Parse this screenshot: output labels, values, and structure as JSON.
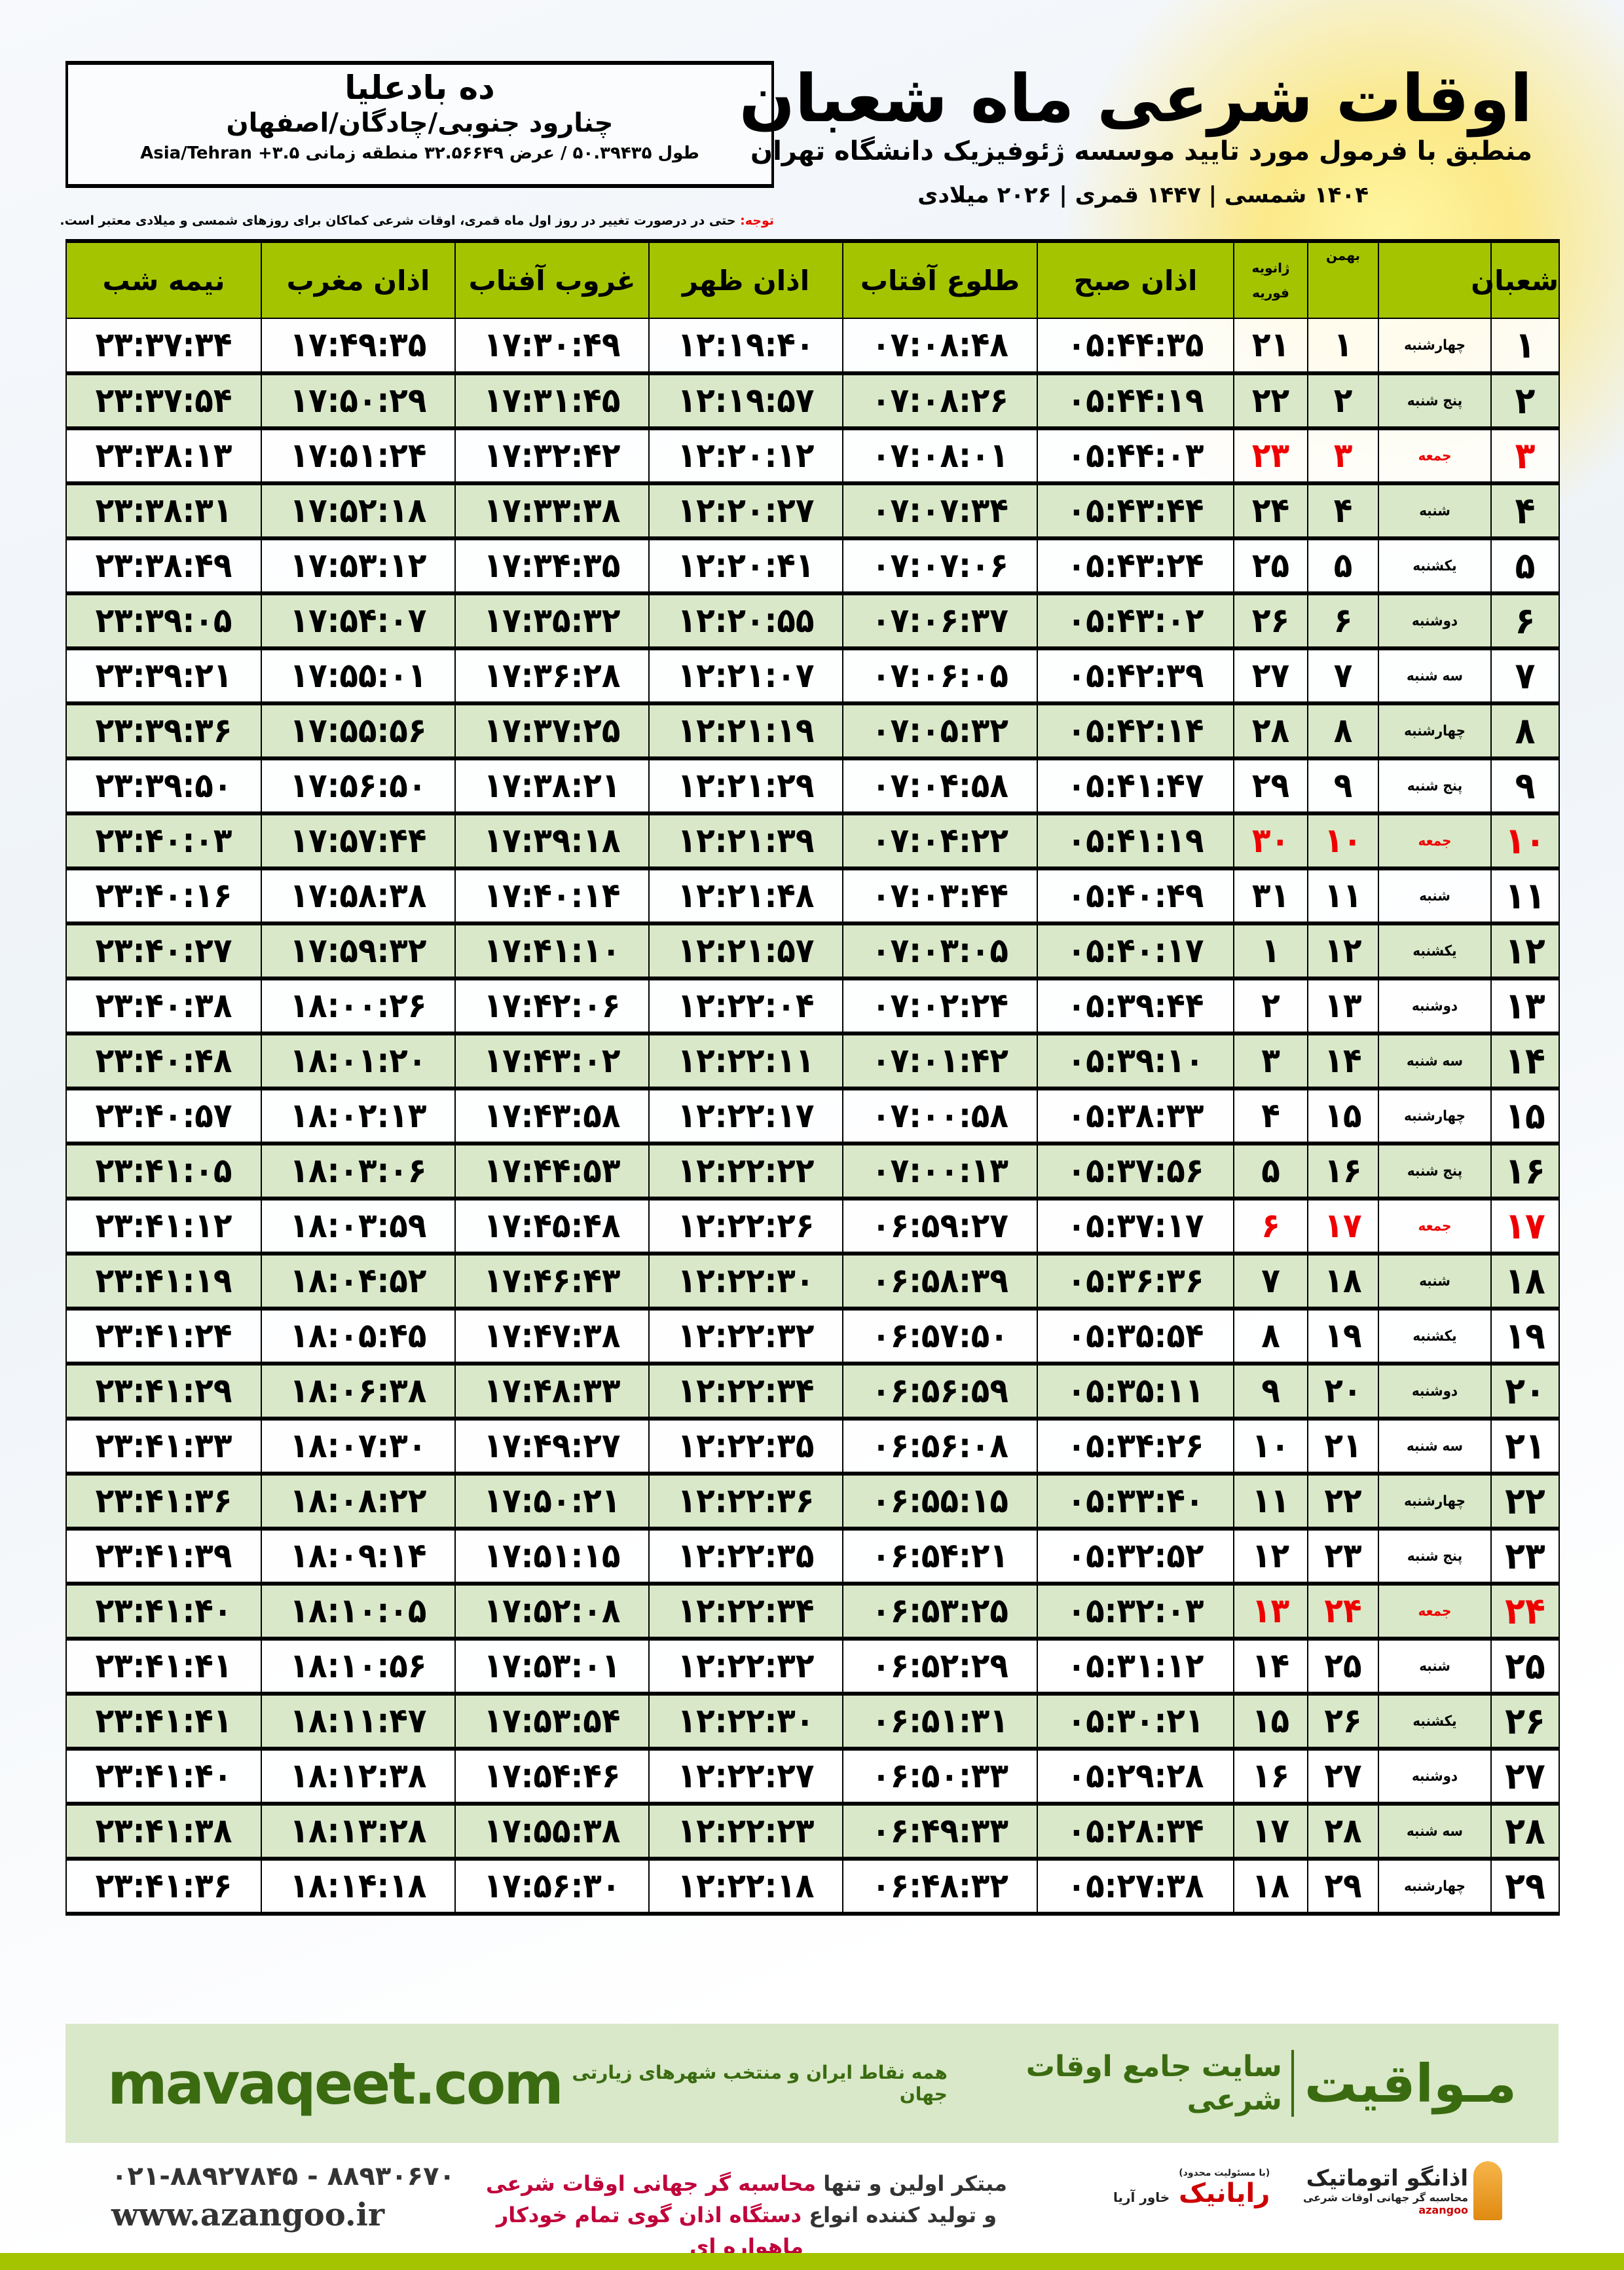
{
  "title": "اوقات شرعی ماه شعبان",
  "subtitle": "منطبق با فرمول مورد تایید موسسه ژئوفیزیک دانشگاه تهران",
  "dates": "۱۴۰۴ شمسی | ۱۴۴۷ قمری | ۲۰۲۶ میلادی",
  "location": {
    "name": "ده بادعلیا",
    "path": "چنارود جنوبی/چادگان/اصفهان",
    "coords": "طول ۵۰.۳۹۴۳۵ / عرض ۳۲.۵۶۶۴۹ منطقه زمانی Asia/Tehran +۳.۵"
  },
  "note": {
    "label": "توجه:",
    "text": " حتی در درصورت تغییر در روز اول ماه قمری، اوقات شرعی کماکان برای روزهای شمسی و میلادی معتبر است."
  },
  "headers": {
    "day": "شعبان",
    "bahman": "بهمن",
    "greg_top": "ژانویه",
    "greg_bottom": "فوریه",
    "fajr": "اذان صبح",
    "sunrise": "طلوع آفتاب",
    "dhuhr": "اذان ظهر",
    "sunset": "غروب آفتاب",
    "maghrib": "اذان مغرب",
    "midnight": "نیمه شب"
  },
  "colors": {
    "header": "#a5c400",
    "alt_row": "#d9e8c8",
    "friday": "#e00000"
  },
  "rows": [
    [
      "۱",
      "چهارشنبه",
      "۱",
      "۲۱",
      "۰۵:۴۴:۳۵",
      "۰۷:۰۸:۴۸",
      "۱۲:۱۹:۴۰",
      "۱۷:۳۰:۴۹",
      "۱۷:۴۹:۳۵",
      "۲۳:۳۷:۳۴"
    ],
    [
      "۲",
      "پنج شنبه",
      "۲",
      "۲۲",
      "۰۵:۴۴:۱۹",
      "۰۷:۰۸:۲۶",
      "۱۲:۱۹:۵۷",
      "۱۷:۳۱:۴۵",
      "۱۷:۵۰:۲۹",
      "۲۳:۳۷:۵۴"
    ],
    [
      "۳",
      "جمعه",
      "۳",
      "۲۳",
      "۰۵:۴۴:۰۳",
      "۰۷:۰۸:۰۱",
      "۱۲:۲۰:۱۲",
      "۱۷:۳۲:۴۲",
      "۱۷:۵۱:۲۴",
      "۲۳:۳۸:۱۳"
    ],
    [
      "۴",
      "شنبه",
      "۴",
      "۲۴",
      "۰۵:۴۳:۴۴",
      "۰۷:۰۷:۳۴",
      "۱۲:۲۰:۲۷",
      "۱۷:۳۳:۳۸",
      "۱۷:۵۲:۱۸",
      "۲۳:۳۸:۳۱"
    ],
    [
      "۵",
      "یکشنبه",
      "۵",
      "۲۵",
      "۰۵:۴۳:۲۴",
      "۰۷:۰۷:۰۶",
      "۱۲:۲۰:۴۱",
      "۱۷:۳۴:۳۵",
      "۱۷:۵۳:۱۲",
      "۲۳:۳۸:۴۹"
    ],
    [
      "۶",
      "دوشنبه",
      "۶",
      "۲۶",
      "۰۵:۴۳:۰۲",
      "۰۷:۰۶:۳۷",
      "۱۲:۲۰:۵۵",
      "۱۷:۳۵:۳۲",
      "۱۷:۵۴:۰۷",
      "۲۳:۳۹:۰۵"
    ],
    [
      "۷",
      "سه شنبه",
      "۷",
      "۲۷",
      "۰۵:۴۲:۳۹",
      "۰۷:۰۶:۰۵",
      "۱۲:۲۱:۰۷",
      "۱۷:۳۶:۲۸",
      "۱۷:۵۵:۰۱",
      "۲۳:۳۹:۲۱"
    ],
    [
      "۸",
      "چهارشنبه",
      "۸",
      "۲۸",
      "۰۵:۴۲:۱۴",
      "۰۷:۰۵:۳۲",
      "۱۲:۲۱:۱۹",
      "۱۷:۳۷:۲۵",
      "۱۷:۵۵:۵۶",
      "۲۳:۳۹:۳۶"
    ],
    [
      "۹",
      "پنج شنبه",
      "۹",
      "۲۹",
      "۰۵:۴۱:۴۷",
      "۰۷:۰۴:۵۸",
      "۱۲:۲۱:۲۹",
      "۱۷:۳۸:۲۱",
      "۱۷:۵۶:۵۰",
      "۲۳:۳۹:۵۰"
    ],
    [
      "۱۰",
      "جمعه",
      "۱۰",
      "۳۰",
      "۰۵:۴۱:۱۹",
      "۰۷:۰۴:۲۲",
      "۱۲:۲۱:۳۹",
      "۱۷:۳۹:۱۸",
      "۱۷:۵۷:۴۴",
      "۲۳:۴۰:۰۳"
    ],
    [
      "۱۱",
      "شنبه",
      "۱۱",
      "۳۱",
      "۰۵:۴۰:۴۹",
      "۰۷:۰۳:۴۴",
      "۱۲:۲۱:۴۸",
      "۱۷:۴۰:۱۴",
      "۱۷:۵۸:۳۸",
      "۲۳:۴۰:۱۶"
    ],
    [
      "۱۲",
      "یکشنبه",
      "۱۲",
      "۱",
      "۰۵:۴۰:۱۷",
      "۰۷:۰۳:۰۵",
      "۱۲:۲۱:۵۷",
      "۱۷:۴۱:۱۰",
      "۱۷:۵۹:۳۲",
      "۲۳:۴۰:۲۷"
    ],
    [
      "۱۳",
      "دوشنبه",
      "۱۳",
      "۲",
      "۰۵:۳۹:۴۴",
      "۰۷:۰۲:۲۴",
      "۱۲:۲۲:۰۴",
      "۱۷:۴۲:۰۶",
      "۱۸:۰۰:۲۶",
      "۲۳:۴۰:۳۸"
    ],
    [
      "۱۴",
      "سه شنبه",
      "۱۴",
      "۳",
      "۰۵:۳۹:۱۰",
      "۰۷:۰۱:۴۲",
      "۱۲:۲۲:۱۱",
      "۱۷:۴۳:۰۲",
      "۱۸:۰۱:۲۰",
      "۲۳:۴۰:۴۸"
    ],
    [
      "۱۵",
      "چهارشنبه",
      "۱۵",
      "۴",
      "۰۵:۳۸:۳۳",
      "۰۷:۰۰:۵۸",
      "۱۲:۲۲:۱۷",
      "۱۷:۴۳:۵۸",
      "۱۸:۰۲:۱۳",
      "۲۳:۴۰:۵۷"
    ],
    [
      "۱۶",
      "پنج شنبه",
      "۱۶",
      "۵",
      "۰۵:۳۷:۵۶",
      "۰۷:۰۰:۱۳",
      "۱۲:۲۲:۲۲",
      "۱۷:۴۴:۵۳",
      "۱۸:۰۳:۰۶",
      "۲۳:۴۱:۰۵"
    ],
    [
      "۱۷",
      "جمعه",
      "۱۷",
      "۶",
      "۰۵:۳۷:۱۷",
      "۰۶:۵۹:۲۷",
      "۱۲:۲۲:۲۶",
      "۱۷:۴۵:۴۸",
      "۱۸:۰۳:۵۹",
      "۲۳:۴۱:۱۲"
    ],
    [
      "۱۸",
      "شنبه",
      "۱۸",
      "۷",
      "۰۵:۳۶:۳۶",
      "۰۶:۵۸:۳۹",
      "۱۲:۲۲:۳۰",
      "۱۷:۴۶:۴۳",
      "۱۸:۰۴:۵۲",
      "۲۳:۴۱:۱۹"
    ],
    [
      "۱۹",
      "یکشنبه",
      "۱۹",
      "۸",
      "۰۵:۳۵:۵۴",
      "۰۶:۵۷:۵۰",
      "۱۲:۲۲:۳۲",
      "۱۷:۴۷:۳۸",
      "۱۸:۰۵:۴۵",
      "۲۳:۴۱:۲۴"
    ],
    [
      "۲۰",
      "دوشنبه",
      "۲۰",
      "۹",
      "۰۵:۳۵:۱۱",
      "۰۶:۵۶:۵۹",
      "۱۲:۲۲:۳۴",
      "۱۷:۴۸:۳۳",
      "۱۸:۰۶:۳۸",
      "۲۳:۴۱:۲۹"
    ],
    [
      "۲۱",
      "سه شنبه",
      "۲۱",
      "۱۰",
      "۰۵:۳۴:۲۶",
      "۰۶:۵۶:۰۸",
      "۱۲:۲۲:۳۵",
      "۱۷:۴۹:۲۷",
      "۱۸:۰۷:۳۰",
      "۲۳:۴۱:۳۳"
    ],
    [
      "۲۲",
      "چهارشنبه",
      "۲۲",
      "۱۱",
      "۰۵:۳۳:۴۰",
      "۰۶:۵۵:۱۵",
      "۱۲:۲۲:۳۶",
      "۱۷:۵۰:۲۱",
      "۱۸:۰۸:۲۲",
      "۲۳:۴۱:۳۶"
    ],
    [
      "۲۳",
      "پنج شنبه",
      "۲۳",
      "۱۲",
      "۰۵:۳۲:۵۲",
      "۰۶:۵۴:۲۱",
      "۱۲:۲۲:۳۵",
      "۱۷:۵۱:۱۵",
      "۱۸:۰۹:۱۴",
      "۲۳:۴۱:۳۹"
    ],
    [
      "۲۴",
      "جمعه",
      "۲۴",
      "۱۳",
      "۰۵:۳۲:۰۳",
      "۰۶:۵۳:۲۵",
      "۱۲:۲۲:۳۴",
      "۱۷:۵۲:۰۸",
      "۱۸:۱۰:۰۵",
      "۲۳:۴۱:۴۰"
    ],
    [
      "۲۵",
      "شنبه",
      "۲۵",
      "۱۴",
      "۰۵:۳۱:۱۲",
      "۰۶:۵۲:۲۹",
      "۱۲:۲۲:۳۲",
      "۱۷:۵۳:۰۱",
      "۱۸:۱۰:۵۶",
      "۲۳:۴۱:۴۱"
    ],
    [
      "۲۶",
      "یکشنبه",
      "۲۶",
      "۱۵",
      "۰۵:۳۰:۲۱",
      "۰۶:۵۱:۳۱",
      "۱۲:۲۲:۳۰",
      "۱۷:۵۳:۵۴",
      "۱۸:۱۱:۴۷",
      "۲۳:۴۱:۴۱"
    ],
    [
      "۲۷",
      "دوشنبه",
      "۲۷",
      "۱۶",
      "۰۵:۲۹:۲۸",
      "۰۶:۵۰:۳۳",
      "۱۲:۲۲:۲۷",
      "۱۷:۵۴:۴۶",
      "۱۸:۱۲:۳۸",
      "۲۳:۴۱:۴۰"
    ],
    [
      "۲۸",
      "سه شنبه",
      "۲۸",
      "۱۷",
      "۰۵:۲۸:۳۴",
      "۰۶:۴۹:۳۳",
      "۱۲:۲۲:۲۳",
      "۱۷:۵۵:۳۸",
      "۱۸:۱۳:۲۸",
      "۲۳:۴۱:۳۸"
    ],
    [
      "۲۹",
      "چهارشنبه",
      "۲۹",
      "۱۸",
      "۰۵:۲۷:۳۸",
      "۰۶:۴۸:۳۲",
      "۱۲:۲۲:۱۸",
      "۱۷:۵۶:۳۰",
      "۱۸:۱۴:۱۸",
      "۲۳:۴۱:۳۶"
    ]
  ],
  "friday_label": "جمعه",
  "banner": {
    "brand": "مـواقیت",
    "tagline": "سایت جامع اوقات شرعی",
    "tagline2": "همه نقاط ایران و منتخب شهرهای زیارتی جهان",
    "site": "mavaqeet.com"
  },
  "footer": {
    "phones": "۰۲۱-۸۸۹۲۷۸۴۵ - ۸۸۹۳۰۶۷۰",
    "web": "www.azangoo.ir",
    "promo_1a": "مبتکر اولین و تنها ",
    "promo_1b": "محاسبه گر جهانی اوقات شرعی",
    "promo_2a": "و تولید کننده انواع ",
    "promo_2b": "دستگاه اذان گوی تمام خودکار ماهواره ای",
    "logo_raianik": "رایانیک",
    "logo_raianik_sub": "خاور آریا",
    "logo_raianik_top": "(با مسئولیت محدود)",
    "logo_azangoo": "اذانگو اتوماتیک",
    "logo_azangoo_sub": "محاسبه گر جهانی اوقات شرعی",
    "logo_azangoo_en": "azangoo"
  }
}
